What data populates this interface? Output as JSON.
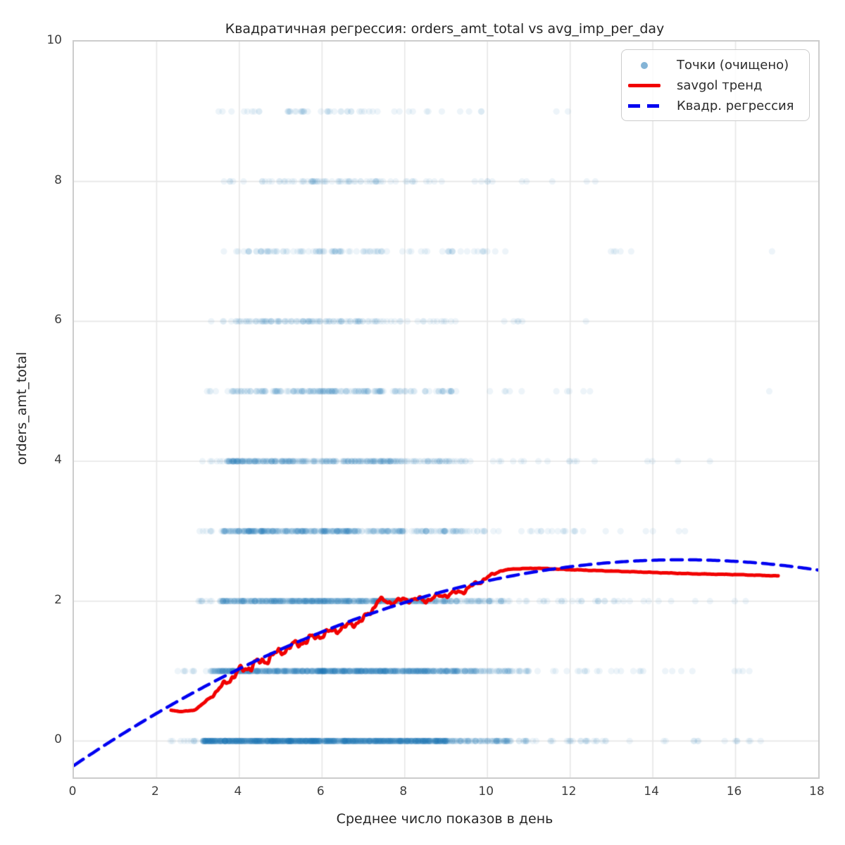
{
  "chart_data": {
    "type": "scatter",
    "title": "Квадратичная регрессия: orders_amt_total vs avg_imp_per_day",
    "xlabel": "Среднее число показов в день",
    "ylabel": "orders_amt_total",
    "xlim": [
      0,
      18
    ],
    "ylim": [
      -0.52,
      10
    ],
    "xticks": [
      0,
      2,
      4,
      6,
      8,
      10,
      12,
      14,
      16,
      18
    ],
    "yticks": [
      0,
      2,
      4,
      6,
      8,
      10
    ],
    "grid": true,
    "grid_color": "#e6e6e6",
    "spine_color": "#cccccc",
    "legend": {
      "position": "upper right",
      "entries": [
        {
          "label": "Точки (очищено)",
          "type": "marker",
          "color": "#1f77b4"
        },
        {
          "label": "savgol тренд",
          "type": "line",
          "color": "#f10000"
        },
        {
          "label": "Квадр. регрессия",
          "type": "dashed-line",
          "color": "#0000f0"
        }
      ]
    },
    "scatter": {
      "name": "Точки (очищено)",
      "color": "#1f77b4",
      "alpha": 0.08,
      "radius": 4.6,
      "rows": [
        {
          "y": 0,
          "segments": [
            [
              2.3,
              3.1,
              10
            ],
            [
              3.1,
              7.0,
              700
            ],
            [
              7.0,
              9.0,
              330
            ],
            [
              9.0,
              10.5,
              90
            ],
            [
              10.5,
              13.0,
              35
            ],
            [
              13.0,
              17.1,
              14
            ]
          ]
        },
        {
          "y": 1,
          "segments": [
            [
              2.5,
              3.3,
              8
            ],
            [
              3.3,
              8.5,
              650
            ],
            [
              8.5,
              9.8,
              110
            ],
            [
              9.8,
              11.0,
              45
            ],
            [
              11.0,
              14.0,
              18
            ],
            [
              14.0,
              16.9,
              8
            ]
          ]
        },
        {
          "y": 2,
          "segments": [
            [
              3.0,
              3.5,
              8
            ],
            [
              3.5,
              8.8,
              500
            ],
            [
              8.8,
              10.5,
              70
            ],
            [
              10.5,
              13.3,
              26
            ],
            [
              13.3,
              16.4,
              9
            ]
          ]
        },
        {
          "y": 3,
          "segments": [
            [
              3.0,
              3.6,
              7
            ],
            [
              3.6,
              8.0,
              330
            ],
            [
              8.0,
              10.0,
              60
            ],
            [
              10.0,
              12.5,
              18
            ],
            [
              12.5,
              15.7,
              6
            ]
          ]
        },
        {
          "y": 4,
          "segments": [
            [
              3.1,
              3.7,
              6
            ],
            [
              3.7,
              7.8,
              260
            ],
            [
              7.8,
              9.7,
              50
            ],
            [
              9.7,
              12.6,
              13
            ],
            [
              13.4,
              15.5,
              4
            ]
          ]
        },
        {
          "y": 5,
          "segments": [
            [
              3.2,
              3.8,
              5
            ],
            [
              3.8,
              7.5,
              150
            ],
            [
              7.5,
              9.5,
              35
            ],
            [
              9.5,
              12.5,
              10
            ],
            [
              16.8,
              17.0,
              1
            ]
          ]
        },
        {
          "y": 6,
          "segments": [
            [
              3.3,
              3.9,
              4
            ],
            [
              3.9,
              7.2,
              95
            ],
            [
              7.2,
              9.0,
              22
            ],
            [
              9.0,
              11.0,
              7
            ],
            [
              12.3,
              12.5,
              1
            ]
          ]
        },
        {
          "y": 7,
          "segments": [
            [
              3.5,
              4.2,
              4
            ],
            [
              4.2,
              7.5,
              70
            ],
            [
              7.5,
              10.0,
              22
            ],
            [
              10.0,
              13.9,
              7
            ],
            [
              16.7,
              16.9,
              1
            ]
          ]
        },
        {
          "y": 8,
          "segments": [
            [
              3.6,
              4.5,
              5
            ],
            [
              4.5,
              7.5,
              55
            ],
            [
              7.5,
              10.2,
              16
            ],
            [
              10.2,
              12.9,
              5
            ]
          ]
        },
        {
          "y": 9,
          "segments": [
            [
              3.4,
              4.3,
              5
            ],
            [
              4.3,
              7.0,
              32
            ],
            [
              7.0,
              9.0,
              11
            ],
            [
              9.0,
              10.6,
              4
            ],
            [
              11.4,
              12.2,
              2
            ]
          ]
        }
      ]
    },
    "savgol_trend": {
      "name": "savgol тренд",
      "color": "#f10000",
      "width": 5,
      "x_range": [
        2.35,
        17.03
      ],
      "keypoints": [
        [
          2.35,
          0.44
        ],
        [
          2.6,
          0.42
        ],
        [
          2.9,
          0.44
        ],
        [
          3.1,
          0.52
        ],
        [
          3.4,
          0.68
        ],
        [
          3.7,
          0.85
        ],
        [
          4.0,
          1.0
        ],
        [
          4.3,
          1.08
        ],
        [
          4.6,
          1.15
        ],
        [
          4.9,
          1.25
        ],
        [
          5.2,
          1.34
        ],
        [
          5.5,
          1.41
        ],
        [
          5.8,
          1.48
        ],
        [
          6.1,
          1.54
        ],
        [
          6.4,
          1.6
        ],
        [
          6.7,
          1.66
        ],
        [
          7.0,
          1.74
        ],
        [
          7.2,
          1.86
        ],
        [
          7.35,
          2.02
        ],
        [
          7.6,
          1.98
        ],
        [
          7.9,
          2.01
        ],
        [
          8.2,
          2.03
        ],
        [
          8.5,
          2.01
        ],
        [
          8.8,
          2.07
        ],
        [
          9.1,
          2.1
        ],
        [
          9.4,
          2.14
        ],
        [
          9.7,
          2.24
        ],
        [
          10.0,
          2.34
        ],
        [
          10.3,
          2.43
        ],
        [
          10.6,
          2.46
        ],
        [
          11.2,
          2.47
        ],
        [
          12.0,
          2.45
        ],
        [
          13.0,
          2.43
        ],
        [
          14.0,
          2.41
        ],
        [
          15.0,
          2.39
        ],
        [
          16.0,
          2.38
        ],
        [
          17.03,
          2.36
        ]
      ],
      "wiggle_amp": [
        [
          2.35,
          0.0
        ],
        [
          3.2,
          0.01
        ],
        [
          3.6,
          0.05
        ],
        [
          4.2,
          0.085
        ],
        [
          7.3,
          0.05
        ],
        [
          9.8,
          0.04
        ],
        [
          10.4,
          0.004
        ],
        [
          17.03,
          0.003
        ]
      ],
      "wiggle_freqs": [
        [
          14.5,
          1.0
        ],
        [
          33.0,
          0.62
        ],
        [
          61.0,
          0.35
        ]
      ],
      "wiggle_phases": [
        0.0,
        1.3,
        0.5
      ]
    },
    "quad_regression": {
      "name": "Квадр. регрессия",
      "color": "#0000f0",
      "width": 4.5,
      "dash": [
        16,
        10
      ],
      "coeffs": {
        "a": -0.35,
        "b": 0.4,
        "c": -0.0136
      },
      "x_range": [
        0,
        18
      ]
    }
  }
}
